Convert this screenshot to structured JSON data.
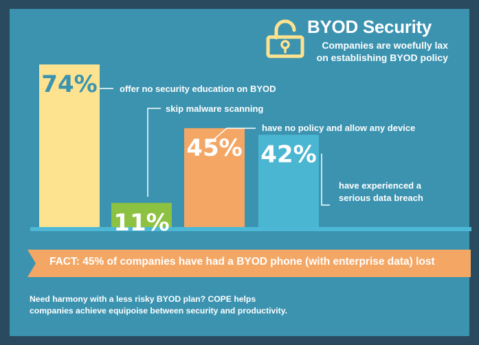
{
  "header": {
    "title": "BYOD Security",
    "subtitle_line1": "Companies are woefully lax",
    "subtitle_line2": "on establishing BYOD policy",
    "icon": "padlock-icon"
  },
  "chart_data": {
    "type": "bar",
    "categories": [
      "offer no security education on BYOD",
      "skip malware scanning",
      "have no policy and allow any device",
      "have experienced a serious data breach"
    ],
    "values": [
      74,
      11,
      45,
      42
    ],
    "value_labels": [
      "74%",
      "11%",
      "45%",
      "42%"
    ],
    "annotations": [
      [
        "offer no security education on BYOD"
      ],
      [
        "skip malware scanning"
      ],
      [
        "have no policy and allow any device"
      ],
      [
        "have experienced a",
        "serious data breach"
      ]
    ],
    "ylim": [
      0,
      74
    ],
    "bar_colors": [
      "#fde38f",
      "#8dc142",
      "#f4a765",
      "#4bb6d2"
    ],
    "label_colors": [
      "#3b93b0",
      "#ffffff",
      "#ffffff",
      "#ffffff"
    ],
    "baseline_color": "#4cb8d5",
    "grid": false,
    "legend": "none"
  },
  "fact": {
    "text": "FACT: 45% of companies have had a BYOD phone (with enterprise data) lost",
    "color": "#f4a765"
  },
  "footer": {
    "line1": "Need harmony with a less risky BYOD plan? COPE helps",
    "line2": "companies achieve equipoise between security and productivity."
  },
  "colors": {
    "background": "#2a4a60",
    "panel": "#3b93b0",
    "icon": "#fde38f"
  }
}
